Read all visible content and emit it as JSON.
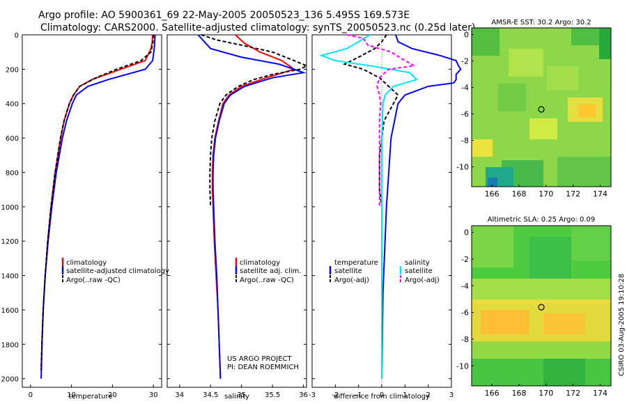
{
  "title_line1": "Argo profile: AO 5900361_69 22-May-2005 20050523_136 5.495S 169.573E",
  "title_line2": "Climatology: CARS2000. Satellite-adjusted climatology: synTS_20050523.nc (0.25d later)",
  "side_label": "CSIRO 03-Aug-2005 19:10:28",
  "project_line1": "US ARGO PROJECT",
  "project_line2": "PI: DEAN ROEMMICH",
  "colors": {
    "climatology": "#ff0000",
    "satellite": "#0000ff",
    "argo": "#000000",
    "sal_satellite": "#00e5ff",
    "sal_argo": "#ff00ff"
  },
  "chart_data": [
    {
      "id": "temperature",
      "type": "line",
      "xlabel": "temperature",
      "ylabel": "",
      "xlim": [
        -2,
        32
      ],
      "ylim": [
        2050,
        0
      ],
      "xticks": [
        0,
        10,
        20,
        30
      ],
      "yticks": [
        0,
        200,
        400,
        600,
        800,
        1000,
        1200,
        1400,
        1600,
        1800,
        2000
      ],
      "legend": [
        "climatology",
        "satellite-adjusted climatology",
        "Argo(..raw -QC)"
      ],
      "series": [
        {
          "name": "climatology",
          "color": "#ff0000",
          "dash": "",
          "depth": [
            0,
            40,
            80,
            150,
            200,
            260,
            300,
            350,
            400,
            500,
            600,
            800,
            1000,
            1200,
            1400,
            1600,
            1800,
            1950
          ],
          "values": [
            29.8,
            29.7,
            29.4,
            28.0,
            22.0,
            15.0,
            12.0,
            10.5,
            9.5,
            8.2,
            7.4,
            6.0,
            5.0,
            4.2,
            3.6,
            3.1,
            2.8,
            2.6
          ]
        },
        {
          "name": "satellite-adjusted climatology",
          "color": "#0000ff",
          "dash": "",
          "depth": [
            0,
            40,
            80,
            150,
            200,
            260,
            300,
            350,
            400,
            500,
            600,
            800,
            1000,
            1200,
            1400,
            1600,
            1800,
            2000
          ],
          "values": [
            30.4,
            30.3,
            30.2,
            29.8,
            28.0,
            19.0,
            14.0,
            11.2,
            10.2,
            8.8,
            7.8,
            6.3,
            5.2,
            4.3,
            3.6,
            3.1,
            2.8,
            2.6
          ]
        },
        {
          "name": "Argo(..raw -QC)",
          "color": "#000000",
          "dash": "5,3",
          "depth": [
            0,
            20,
            50,
            100,
            150,
            200,
            250,
            300,
            350,
            400,
            500,
            600,
            800,
            1000,
            1200,
            1400,
            1600,
            1800,
            1950
          ],
          "values": [
            30.0,
            30.0,
            29.8,
            29.4,
            27.0,
            21.0,
            16.0,
            12.0,
            10.5,
            9.5,
            8.2,
            7.3,
            6.0,
            5.0,
            4.2,
            3.6,
            3.1,
            2.8,
            2.6
          ]
        }
      ]
    },
    {
      "id": "salinity",
      "type": "line",
      "xlabel": "salinity",
      "ylabel": "",
      "xlim": [
        33.8,
        36.05
      ],
      "ylim": [
        2050,
        0
      ],
      "xticks": [
        34,
        34.5,
        35,
        35.5,
        36
      ],
      "xticklabels": [
        "34",
        "34.5",
        "35",
        "35.5",
        "36"
      ],
      "yticks": [
        0,
        200,
        400,
        600,
        800,
        1000,
        1200,
        1400,
        1600,
        1800,
        2000
      ],
      "legend": [
        "climatology",
        "satellite adj. clim.",
        "Argo(..raw -QC)"
      ],
      "series": [
        {
          "name": "climatology",
          "color": "#ff0000",
          "dash": "",
          "depth": [
            0,
            50,
            100,
            150,
            200,
            250,
            300,
            350,
            400,
            500,
            600,
            700,
            800,
            900,
            1000,
            1200,
            1400,
            1600,
            1800,
            2000
          ],
          "values": [
            34.9,
            35.05,
            35.3,
            35.65,
            35.85,
            35.4,
            35.0,
            34.8,
            34.7,
            34.63,
            34.57,
            34.54,
            34.53,
            34.53,
            34.54,
            34.56,
            34.59,
            34.62,
            34.64,
            34.66
          ]
        },
        {
          "name": "satellite adj. clim.",
          "color": "#0000ff",
          "dash": "",
          "depth": [
            0,
            80,
            130,
            170,
            200,
            220,
            250,
            300,
            350,
            400,
            500,
            600,
            700,
            800,
            900,
            1000,
            1200,
            1400,
            1600,
            1800,
            2000
          ],
          "values": [
            34.3,
            34.5,
            35.0,
            35.6,
            35.85,
            36.0,
            35.5,
            35.05,
            34.82,
            34.72,
            34.64,
            34.58,
            34.55,
            34.54,
            34.54,
            34.55,
            34.57,
            34.6,
            34.62,
            34.64,
            34.66
          ]
        },
        {
          "name": "Argo(..raw -QC)",
          "color": "#000000",
          "dash": "5,3",
          "depth": [
            0,
            30,
            60,
            100,
            150,
            180,
            200,
            230,
            260,
            300,
            350,
            400,
            500,
            600,
            700,
            800,
            900,
            1000
          ],
          "values": [
            34.35,
            34.6,
            35.0,
            35.5,
            35.85,
            36.05,
            35.95,
            35.5,
            35.2,
            34.95,
            34.75,
            34.65,
            34.57,
            34.52,
            34.5,
            34.49,
            34.49,
            34.5
          ]
        }
      ]
    },
    {
      "id": "difference",
      "type": "line",
      "xlabel": "difference from climatology",
      "ylabel": "",
      "xlim": [
        -3,
        3
      ],
      "ylim": [
        2050,
        0
      ],
      "xticks": [
        -3,
        -2,
        -1,
        0,
        1,
        2,
        3
      ],
      "yticks": [
        0,
        200,
        400,
        600,
        800,
        1000,
        1200,
        1400,
        1600,
        1800,
        2000
      ],
      "legend_left_title": "temperature",
      "legend_left": [
        "satellite",
        "Argo(-adj)"
      ],
      "legend_right_title": "salinity",
      "legend_right": [
        "satellite",
        "Argo(-adj)"
      ],
      "series": [
        {
          "name": "temperature satellite",
          "color": "#0000ff",
          "dash": "",
          "depth": [
            0,
            40,
            80,
            120,
            150,
            180,
            200,
            230,
            260,
            280,
            300,
            350,
            400,
            600,
            800,
            1000,
            1500,
            2000
          ],
          "values": [
            0.6,
            0.7,
            1.3,
            2.5,
            3.2,
            3.3,
            3.4,
            3.2,
            3.2,
            3.1,
            2.0,
            1.0,
            0.7,
            0.4,
            0.3,
            0.2,
            0.05,
            0.0
          ]
        },
        {
          "name": "temperature Argo(-adj)",
          "color": "#000000",
          "dash": "5,3",
          "depth": [
            0,
            40,
            80,
            130,
            170,
            200,
            250,
            300,
            350,
            400,
            450,
            500,
            600,
            700,
            800,
            900,
            1000
          ],
          "values": [
            0.2,
            0.0,
            -0.3,
            -1.0,
            -1.6,
            -0.8,
            -0.1,
            0.3,
            0.7,
            0.5,
            0.3,
            0.1,
            0.0,
            -0.1,
            -0.1,
            -0.1,
            0.0
          ]
        },
        {
          "name": "salinity satellite",
          "color": "#00e5ff",
          "dash": "",
          "depth": [
            0,
            40,
            80,
            120,
            150,
            180,
            220,
            260,
            300,
            350,
            400,
            600,
            1000,
            1500,
            2000
          ],
          "values": [
            -0.5,
            -1.0,
            -1.5,
            -2.6,
            -2.0,
            -0.5,
            1.2,
            1.5,
            0.5,
            0.15,
            0.05,
            0.0,
            0.0,
            0.0,
            0.0
          ]
        },
        {
          "name": "salinity Argo(-adj)",
          "color": "#ff00ff",
          "dash": "5,3",
          "depth": [
            0,
            20,
            60,
            100,
            150,
            180,
            200,
            250,
            300,
            350,
            400,
            500,
            600,
            800,
            1000
          ],
          "values": [
            -1.5,
            -0.8,
            -0.6,
            0.4,
            1.0,
            1.4,
            0.3,
            -0.1,
            -0.2,
            -0.1,
            -0.05,
            -0.1,
            -0.1,
            -0.1,
            -0.1
          ]
        }
      ]
    },
    {
      "id": "sst_map",
      "type": "heatmap",
      "title": "AMSR-E SST: 30.2 Argo: 30.2",
      "xlim": [
        164.5,
        174.8
      ],
      "ylim": [
        -11.5,
        0.5
      ],
      "xticks": [
        166,
        168,
        170,
        172,
        174
      ],
      "yticks": [
        0,
        -2,
        -4,
        -6,
        -8,
        -10
      ],
      "float_position": [
        169.573,
        -5.495
      ],
      "dominant_color": "#8ed64a"
    },
    {
      "id": "sla_map",
      "type": "heatmap",
      "title": "Altimetric SLA: 0.25 Argo: 0.09",
      "xlim": [
        164.5,
        174.8
      ],
      "ylim": [
        -11.5,
        0.5
      ],
      "xticks": [
        166,
        168,
        170,
        172,
        174
      ],
      "yticks": [
        0,
        -2,
        -4,
        -6,
        -8,
        -10
      ],
      "float_position": [
        169.573,
        -5.495
      ],
      "dominant_color": "#4ecb3e"
    }
  ]
}
